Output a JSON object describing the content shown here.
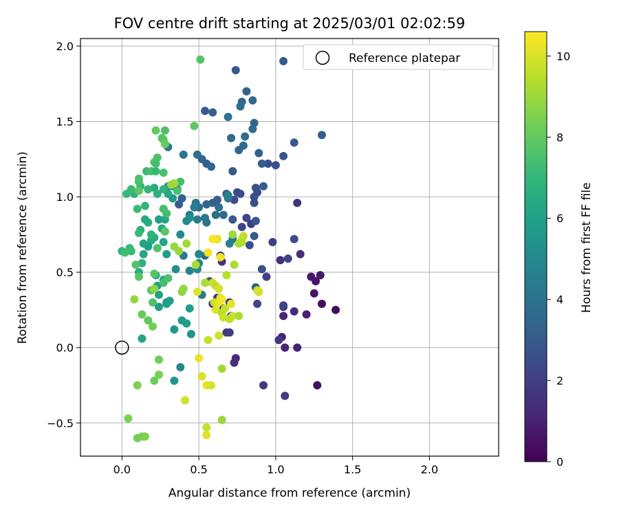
{
  "chart_data": {
    "type": "scatter",
    "title": "FOV centre drift starting at 2025/03/01 02:02:59",
    "xlabel": "Angular distance from reference (arcmin)",
    "ylabel": "Rotation from reference (arcmin)",
    "xlim": [
      -0.27,
      2.45
    ],
    "ylim": [
      -0.72,
      2.05
    ],
    "xticks": [
      0.0,
      0.5,
      1.0,
      1.5,
      2.0
    ],
    "xtick_labels": [
      "0.0",
      "0.5",
      "1.0",
      "1.5",
      "2.0"
    ],
    "yticks": [
      -0.5,
      0.0,
      0.5,
      1.0,
      1.5,
      2.0
    ],
    "ytick_labels": [
      "−0.5",
      "0.0",
      "0.5",
      "1.0",
      "1.5",
      "2.0"
    ],
    "grid": true,
    "legend": {
      "placement": "top-right",
      "entries": [
        "Reference platepar"
      ]
    },
    "reference_point": {
      "x": 0.0,
      "y": 0.0,
      "marker": "open-circle"
    },
    "colorbar": {
      "label": "Hours from first FF file",
      "range": [
        0,
        10.6
      ],
      "ticks": [
        0,
        2,
        4,
        6,
        8,
        10
      ],
      "tick_labels": [
        "0",
        "2",
        "4",
        "6",
        "8",
        "10"
      ],
      "colormap": "viridis",
      "colormap_stops": [
        "#440154",
        "#482878",
        "#3e4989",
        "#31688e",
        "#26828e",
        "#1f9e89",
        "#35b779",
        "#6ece58",
        "#b5de2b",
        "#fde725"
      ]
    },
    "points": [
      [
        1.39,
        0.25,
        0.3
      ],
      [
        1.27,
        -0.25,
        0.4
      ],
      [
        1.3,
        0.29,
        0.4
      ],
      [
        1.25,
        0.36,
        0.5
      ],
      [
        1.26,
        0.44,
        0.6
      ],
      [
        1.23,
        0.47,
        0.7
      ],
      [
        1.29,
        0.48,
        0.8
      ],
      [
        1.2,
        0.22,
        0.9
      ],
      [
        1.14,
        0.0,
        1.0
      ],
      [
        1.06,
        0.0,
        1.1
      ],
      [
        1.04,
        0.07,
        1.0
      ],
      [
        1.05,
        0.21,
        1.2
      ],
      [
        1.12,
        0.24,
        1.3
      ],
      [
        1.05,
        0.27,
        1.4
      ],
      [
        1.03,
        0.58,
        1.5
      ],
      [
        1.16,
        0.62,
        1.4
      ],
      [
        1.14,
        0.96,
        1.6
      ],
      [
        1.02,
        0.05,
        1.7
      ],
      [
        0.92,
        -0.25,
        1.8
      ],
      [
        1.06,
        -0.32,
        1.9
      ],
      [
        0.94,
        0.47,
        2.0
      ],
      [
        0.98,
        0.7,
        2.1
      ],
      [
        1.08,
        0.59,
        2.2
      ],
      [
        1.12,
        0.72,
        2.4
      ],
      [
        1.05,
        0.28,
        2.2
      ],
      [
        0.95,
        1.22,
        2.5
      ],
      [
        1.0,
        1.21,
        2.6
      ],
      [
        1.05,
        1.27,
        2.8
      ],
      [
        1.12,
        1.36,
        3.0
      ],
      [
        1.3,
        1.41,
        3.2
      ],
      [
        1.05,
        1.9,
        3.0
      ],
      [
        0.74,
        1.84,
        3.0
      ],
      [
        0.81,
        1.7,
        3.3
      ],
      [
        0.78,
        1.63,
        3.5
      ],
      [
        0.85,
        1.64,
        3.6
      ],
      [
        0.54,
        1.57,
        3.0
      ],
      [
        0.59,
        1.56,
        3.3
      ],
      [
        0.77,
        1.6,
        3.7
      ],
      [
        0.86,
        1.49,
        3.4
      ],
      [
        0.85,
        1.45,
        3.6
      ],
      [
        0.69,
        1.53,
        4.0
      ],
      [
        0.8,
        1.4,
        3.8
      ],
      [
        0.79,
        1.34,
        3.9
      ],
      [
        0.76,
        1.31,
        3.5
      ],
      [
        0.71,
        1.39,
        3.7
      ],
      [
        0.89,
        1.29,
        3.3
      ],
      [
        0.91,
        1.22,
        3.2
      ],
      [
        0.72,
        1.17,
        2.9
      ],
      [
        0.55,
        1.22,
        3.1
      ],
      [
        0.52,
        1.25,
        3.4
      ],
      [
        0.49,
        1.28,
        3.8
      ],
      [
        0.4,
        1.28,
        4.1
      ],
      [
        0.3,
        1.33,
        4.3
      ],
      [
        0.58,
        1.2,
        3.5
      ],
      [
        0.75,
        1.03,
        2.6
      ],
      [
        0.73,
        0.98,
        2.4
      ],
      [
        0.81,
        0.86,
        2.3
      ],
      [
        0.78,
        0.8,
        2.2
      ],
      [
        0.72,
        0.85,
        3.0
      ],
      [
        0.86,
        1.0,
        2.7
      ],
      [
        0.87,
        1.06,
        2.9
      ],
      [
        0.92,
        1.07,
        3.1
      ],
      [
        0.88,
        1.03,
        2.5
      ],
      [
        0.86,
        0.96,
        2.6
      ],
      [
        0.84,
        0.82,
        2.0
      ],
      [
        0.87,
        0.84,
        2.8
      ],
      [
        0.77,
        1.02,
        2.4
      ],
      [
        0.68,
        1.02,
        2.9
      ],
      [
        0.62,
        0.98,
        3.1
      ],
      [
        0.59,
        0.96,
        3.3
      ],
      [
        0.55,
        0.95,
        3.5
      ],
      [
        0.5,
        0.93,
        3.7
      ],
      [
        0.48,
        0.96,
        4.1
      ],
      [
        0.55,
        0.83,
        4.0
      ],
      [
        0.54,
        0.86,
        4.3
      ],
      [
        0.61,
        0.88,
        3.8
      ],
      [
        0.66,
        0.88,
        3.6
      ],
      [
        0.63,
        0.93,
        3.9
      ],
      [
        0.69,
        0.99,
        4.2
      ],
      [
        0.69,
        1.01,
        4.6
      ],
      [
        0.72,
        0.72,
        4.2
      ],
      [
        0.7,
        0.69,
        4.6
      ],
      [
        0.62,
        0.72,
        2.2
      ],
      [
        0.64,
        0.61,
        1.8
      ],
      [
        0.65,
        0.57,
        1.7
      ],
      [
        0.54,
        0.61,
        3.6
      ],
      [
        0.57,
        0.44,
        3.0
      ],
      [
        0.62,
        0.33,
        1.6
      ],
      [
        0.59,
        0.29,
        1.9
      ],
      [
        0.66,
        0.26,
        1.7
      ],
      [
        0.74,
        -0.07,
        1.2
      ],
      [
        0.73,
        -0.1,
        1.5
      ],
      [
        0.68,
        0.1,
        1.8
      ],
      [
        0.7,
        0.1,
        1.9
      ],
      [
        0.7,
        0.3,
        2.0
      ],
      [
        0.71,
        0.21,
        2.1
      ],
      [
        0.88,
        0.29,
        2.2
      ],
      [
        0.91,
        0.52,
        2.6
      ],
      [
        0.87,
        0.4,
        3.2
      ],
      [
        0.89,
        0.37,
        3.4
      ],
      [
        0.86,
        0.74,
        3.0
      ],
      [
        0.83,
        0.68,
        2.6
      ],
      [
        0.39,
        0.99,
        3.3
      ],
      [
        0.37,
        0.95,
        3.1
      ],
      [
        0.47,
        0.93,
        4.5
      ],
      [
        0.44,
        0.88,
        4.3
      ],
      [
        0.42,
        0.84,
        5.0
      ],
      [
        0.44,
        0.86,
        5.2
      ],
      [
        0.36,
        1.05,
        5.1
      ],
      [
        0.49,
        0.85,
        4.5
      ],
      [
        0.38,
        0.75,
        5.0
      ],
      [
        0.5,
        0.62,
        4.8
      ],
      [
        0.52,
        0.35,
        4.3
      ],
      [
        0.4,
        0.61,
        4.4
      ],
      [
        0.5,
        0.56,
        4.6
      ],
      [
        0.49,
        0.52,
        5.0
      ],
      [
        0.44,
        0.51,
        4.8
      ],
      [
        0.35,
        0.52,
        5.3
      ],
      [
        0.29,
        0.3,
        5.3
      ],
      [
        0.34,
        0.12,
        5.6
      ],
      [
        0.39,
        0.18,
        5.8
      ],
      [
        0.42,
        0.16,
        5.9
      ],
      [
        0.45,
        0.09,
        5.5
      ],
      [
        0.44,
        0.26,
        5.9
      ],
      [
        0.38,
        -0.13,
        5.0
      ],
      [
        0.34,
        -0.22,
        5.5
      ],
      [
        0.29,
        0.29,
        6.0
      ],
      [
        0.31,
        0.31,
        5.9
      ],
      [
        0.24,
        0.35,
        6.1
      ],
      [
        0.24,
        0.27,
        5.8
      ],
      [
        0.27,
        0.45,
        6.3
      ],
      [
        0.22,
        0.48,
        6.2
      ],
      [
        0.23,
        0.41,
        6.0
      ],
      [
        0.13,
        0.06,
        6.2
      ],
      [
        0.11,
        0.5,
        6.5
      ],
      [
        0.13,
        0.56,
        6.8
      ],
      [
        0.19,
        0.71,
        6.6
      ],
      [
        0.21,
        0.73,
        6.6
      ],
      [
        0.26,
        0.79,
        6.4
      ],
      [
        0.27,
        0.7,
        6.2
      ],
      [
        0.29,
        0.62,
        5.9
      ],
      [
        0.17,
        0.67,
        6.0
      ],
      [
        0.14,
        0.69,
        6.2
      ],
      [
        0.14,
        0.62,
        6.3
      ],
      [
        0.19,
        0.75,
        6.9
      ],
      [
        0.17,
        0.83,
        6.6
      ],
      [
        0.15,
        0.85,
        6.4
      ],
      [
        0.12,
        0.78,
        6.7
      ],
      [
        0.11,
        0.76,
        7.2
      ],
      [
        0.24,
        0.85,
        6.0
      ],
      [
        0.28,
        0.85,
        6.2
      ],
      [
        0.27,
        0.92,
        6.7
      ],
      [
        0.33,
        0.99,
        5.6
      ],
      [
        0.3,
        1.02,
        6.3
      ],
      [
        0.3,
        1.07,
        5.4
      ],
      [
        0.33,
        1.07,
        5.7
      ],
      [
        0.27,
        1.05,
        6.8
      ],
      [
        0.21,
        1.06,
        6.5
      ],
      [
        0.23,
        1.02,
        6.7
      ],
      [
        0.17,
        1.05,
        7.0
      ],
      [
        0.15,
        0.94,
        7.0
      ],
      [
        0.1,
        0.92,
        7.2
      ],
      [
        0.08,
        1.02,
        6.8
      ],
      [
        0.12,
        1.07,
        6.9
      ],
      [
        0.11,
        1.1,
        7.4
      ],
      [
        0.06,
        1.05,
        7.2
      ],
      [
        0.03,
        1.02,
        7.1
      ],
      [
        0.11,
        1.12,
        7.6
      ],
      [
        0.11,
        1.04,
        7.9
      ],
      [
        0.06,
        0.64,
        7.0
      ],
      [
        0.0,
        0.64,
        6.8
      ],
      [
        0.05,
        0.66,
        7.2
      ],
      [
        0.02,
        0.63,
        7.3
      ],
      [
        0.16,
        1.17,
        7.1
      ],
      [
        0.19,
        1.17,
        7.5
      ],
      [
        0.22,
        1.17,
        7.0
      ],
      [
        0.21,
        1.23,
        7.7
      ],
      [
        0.27,
        1.16,
        7.5
      ],
      [
        0.23,
        1.26,
        7.6
      ],
      [
        0.22,
        1.22,
        7.4
      ],
      [
        0.26,
        1.39,
        7.8
      ],
      [
        0.28,
        1.44,
        7.6
      ],
      [
        0.27,
        1.38,
        7.7
      ],
      [
        0.22,
        1.44,
        8.0
      ],
      [
        0.28,
        1.35,
        8.1
      ],
      [
        0.47,
        1.47,
        7.9
      ],
      [
        0.51,
        1.91,
        7.7
      ],
      [
        0.38,
        1.1,
        7.4
      ],
      [
        0.36,
        1.04,
        7.5
      ],
      [
        0.29,
        0.89,
        7.3
      ],
      [
        0.27,
        0.92,
        7.5
      ],
      [
        0.28,
        0.77,
        7.8
      ],
      [
        0.23,
        0.66,
        7.6
      ],
      [
        0.21,
        0.49,
        7.8
      ],
      [
        0.09,
        0.55,
        7.7
      ],
      [
        0.11,
        0.47,
        7.8
      ],
      [
        0.19,
        0.38,
        7.9
      ],
      [
        0.2,
        0.3,
        7.6
      ],
      [
        0.27,
        0.43,
        7.4
      ],
      [
        0.3,
        0.46,
        7.6
      ],
      [
        0.17,
        0.18,
        8.0
      ],
      [
        0.13,
        0.22,
        8.1
      ],
      [
        0.2,
        0.14,
        8.3
      ],
      [
        0.24,
        -0.08,
        8.2
      ],
      [
        0.24,
        -0.18,
        8.4
      ],
      [
        0.1,
        -0.25,
        8.5
      ],
      [
        0.21,
        -0.22,
        8.2
      ],
      [
        0.04,
        -0.47,
        8.4
      ],
      [
        0.1,
        -0.6,
        8.3
      ],
      [
        0.13,
        -0.59,
        8.4
      ],
      [
        0.15,
        -0.59,
        8.5
      ],
      [
        0.08,
        0.32,
        8.9
      ],
      [
        0.21,
        0.39,
        8.8
      ],
      [
        0.4,
        0.39,
        8.9
      ],
      [
        0.39,
        0.37,
        8.8
      ],
      [
        0.34,
        0.67,
        8.9
      ],
      [
        0.37,
        0.64,
        9.0
      ],
      [
        0.34,
        1.09,
        9.2
      ],
      [
        0.32,
        1.08,
        9.0
      ],
      [
        0.42,
        0.69,
        9.1
      ],
      [
        0.54,
        0.43,
        9.3
      ],
      [
        0.48,
        0.55,
        9.2
      ],
      [
        0.49,
        0.37,
        10.1
      ],
      [
        0.59,
        0.43,
        9.8
      ],
      [
        0.6,
        0.3,
        9.8
      ],
      [
        0.63,
        0.3,
        10.2
      ],
      [
        0.61,
        0.25,
        10.1
      ],
      [
        0.65,
        0.23,
        9.4
      ],
      [
        0.66,
        0.2,
        9.8
      ],
      [
        0.61,
        0.41,
        9.5
      ],
      [
        0.63,
        0.39,
        9.9
      ],
      [
        0.64,
        0.33,
        10.1
      ],
      [
        0.67,
        0.26,
        9.7
      ],
      [
        0.65,
        0.32,
        10.4
      ],
      [
        0.71,
        0.29,
        10.2
      ],
      [
        0.68,
        0.48,
        9.5
      ],
      [
        0.72,
        0.21,
        9.8
      ],
      [
        0.7,
        0.19,
        9.6
      ],
      [
        0.73,
        0.55,
        9.2
      ],
      [
        0.76,
        0.21,
        9.3
      ],
      [
        0.78,
        0.72,
        10.0
      ],
      [
        0.79,
        0.74,
        9.6
      ],
      [
        0.76,
        0.69,
        9.2
      ],
      [
        0.72,
        0.75,
        9.0
      ],
      [
        0.78,
        0.7,
        9.4
      ],
      [
        0.88,
        0.38,
        9.7
      ],
      [
        0.89,
        0.37,
        9.9
      ],
      [
        0.62,
        0.72,
        10.2
      ],
      [
        0.64,
        0.6,
        10.4
      ],
      [
        0.56,
        0.05,
        9.7
      ],
      [
        0.55,
        -0.25,
        10.2
      ],
      [
        0.58,
        -0.25,
        10.0
      ],
      [
        0.5,
        -0.07,
        10.3
      ],
      [
        0.52,
        -0.19,
        10.0
      ],
      [
        0.41,
        -0.35,
        9.8
      ],
      [
        0.55,
        -0.53,
        9.7
      ],
      [
        0.55,
        -0.58,
        10.1
      ],
      [
        0.65,
        -0.14,
        9.1
      ],
      [
        0.65,
        -0.48,
        9.0
      ],
      [
        0.63,
        0.08,
        9.8
      ],
      [
        0.59,
        0.72,
        10.5
      ],
      [
        0.56,
        0.63,
        10.4
      ]
    ]
  }
}
